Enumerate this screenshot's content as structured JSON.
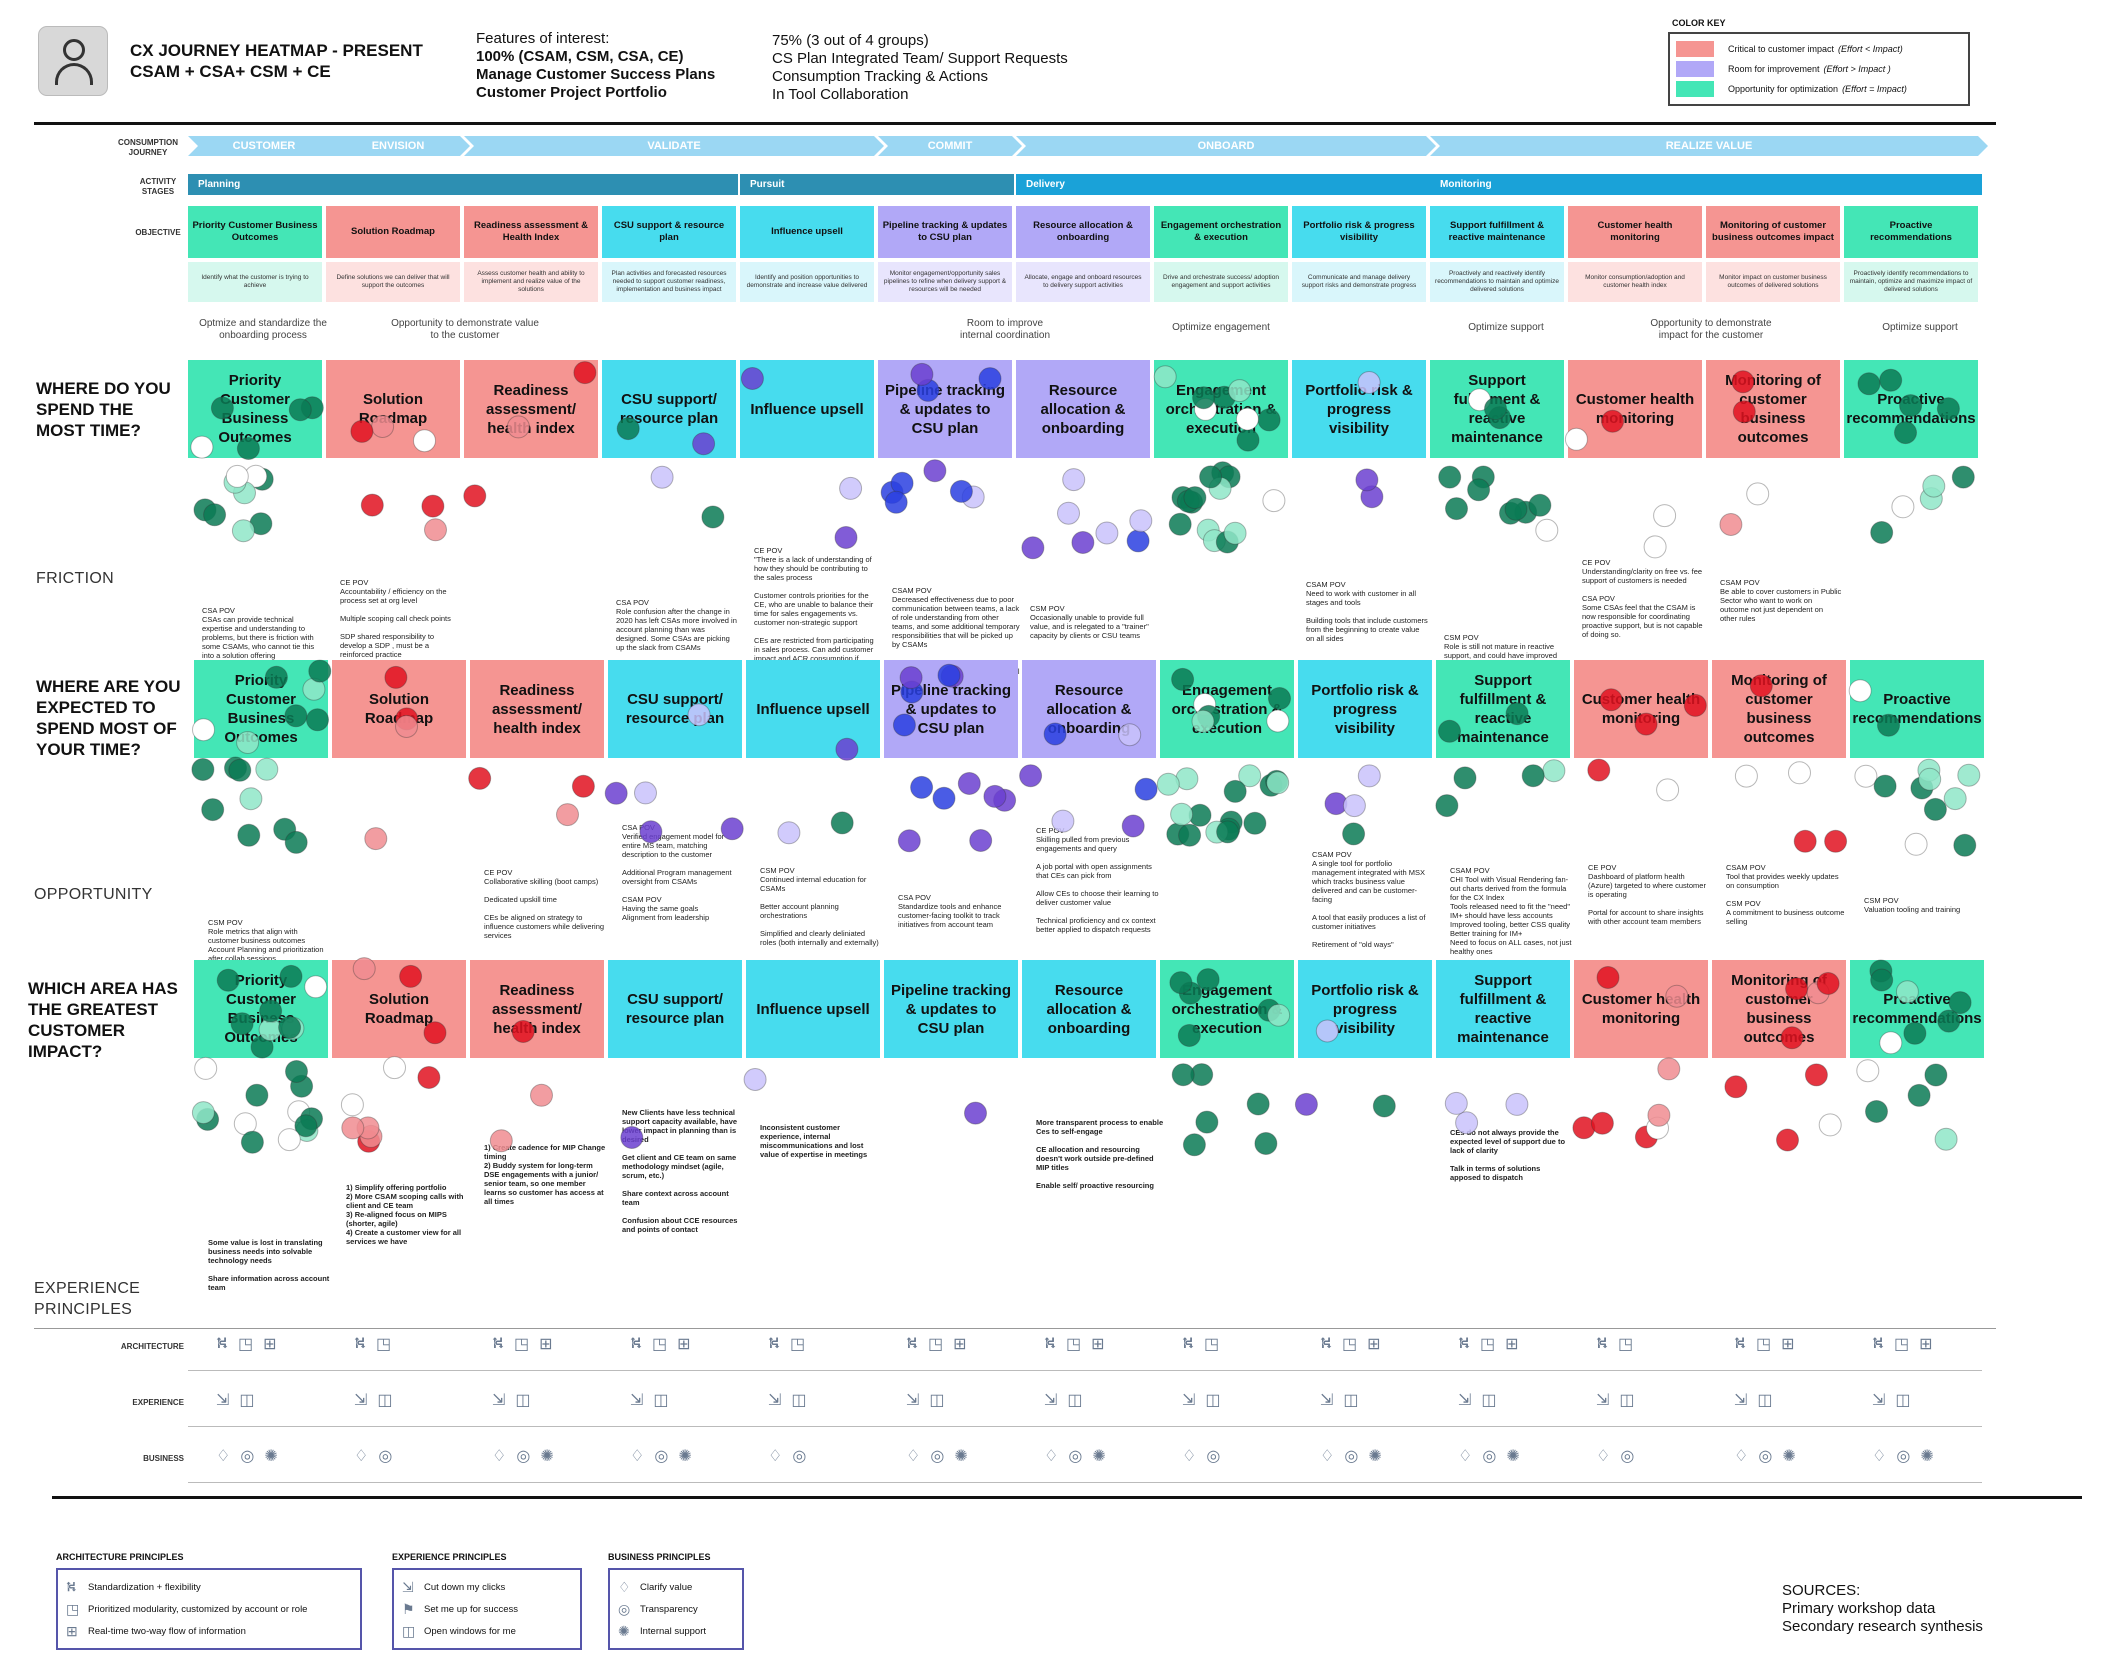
{
  "header": {
    "title_line1": "CX JOURNEY HEATMAP - PRESENT",
    "title_line2": "CSAM + CSA+ CSM + CE",
    "features_label": "Features of interest:",
    "feat_left": [
      "100% (CSAM, CSM, CSA, CE)",
      "Manage Customer Success Plans",
      "Customer Project Portfolio"
    ],
    "feat_right": [
      "75%  (3 out of 4 groups)",
      "CS Plan Integrated Team/ Support Requests",
      "Consumption Tracking & Actions",
      "In Tool Collaboration"
    ]
  },
  "color_key": {
    "title": "COLOR KEY",
    "items": [
      {
        "label": "Critical to customer impact",
        "note": "(Effort < Impact)",
        "color": "#f59592"
      },
      {
        "label": "Room for improvement",
        "note": "(Effort > Impact )",
        "color": "#b1a8f7"
      },
      {
        "label": "Opportunity for optimization",
        "note": "(Effort = Impact)",
        "color": "#44e6b6"
      }
    ]
  },
  "row_labels": {
    "journey": "CONSUMPTION\nJOURNEY",
    "activity": "ACTIVITY\nSTAGES",
    "objective": "OBJECTIVE"
  },
  "journey": [
    "CUSTOMER",
    "ENVISION",
    "VALIDATE",
    "COMMIT",
    "ONBOARD",
    "REALIZE VALUE"
  ],
  "stages": [
    "Planning",
    "Pursuit",
    "Delivery",
    "Monitoring"
  ],
  "objectives": [
    {
      "title": "Priority Customer Business Outcomes",
      "desc": "Identify what the customer is trying to achieve",
      "cat": "green"
    },
    {
      "title": "Solution Roadmap",
      "desc": "Define solutions we can deliver that will support the outcomes",
      "cat": "red"
    },
    {
      "title": "Readiness assessment & Health Index",
      "desc": "Assess customer health and ability to implement and realize value of the solutions",
      "cat": "red"
    },
    {
      "title": "CSU support & resource plan",
      "desc": "Plan activities and forecasted resources needed to support customer readiness, implementation and business impact",
      "cat": "cyan"
    },
    {
      "title": "Influence upsell",
      "desc": "Identify and position opportunities to demonstrate and increase value delivered",
      "cat": "cyan"
    },
    {
      "title": "Pipeline tracking & updates to CSU plan",
      "desc": "Monitor engagement/opportunity sales pipelines to refine when delivery support & resources will be needed",
      "cat": "purple"
    },
    {
      "title": "Resource allocation & onboarding",
      "desc": "Allocate, engage and onboard resources to delivery support activities",
      "cat": "purple"
    },
    {
      "title": "Engagement orchestration & execution",
      "desc": "Drive and orchestrate success/ adoption engagement and support activities",
      "cat": "green"
    },
    {
      "title": "Portfolio risk & progress visibility",
      "desc": "Communicate and manage delivery support risks and demonstrate progress",
      "cat": "cyan"
    },
    {
      "title": "Support fulfillment & reactive maintenance",
      "desc": "Proactively and reactively identify recommendations to maintain and optimize delivered solutions",
      "cat": "cyan"
    },
    {
      "title": "Customer health monitoring",
      "desc": "Monitor consumption/adoption and customer health index",
      "cat": "red"
    },
    {
      "title": "Monitoring of customer business outcomes impact",
      "desc": "Monitor impact on customer business outcomes of delivered solutions",
      "cat": "red"
    },
    {
      "title": "Proactive recommendations",
      "desc": "Proactively identify recommendations to maintain, optimize and maximize impact of delivered solutions",
      "cat": "green"
    }
  ],
  "opportunities": [
    "Optmize and standardize the onboarding process",
    "Opportunity to demonstrate value to the customer",
    "Room to improve internal coordination",
    "Optimize engagement",
    "Optimize support",
    "Opportunity to demonstrate impact for the customer",
    "Optimize support"
  ],
  "sections": [
    {
      "question": "WHERE DO YOU SPEND THE MOST TIME?",
      "label": "FRICTION",
      "cards": [
        {
          "title": "Priority Customer Business Outcomes",
          "cat": "green"
        },
        {
          "title": "Solution Roadmap",
          "cat": "red"
        },
        {
          "title": "Readiness assessment/ health index",
          "cat": "red"
        },
        {
          "title": "CSU support/ resource plan",
          "cat": "cyan"
        },
        {
          "title": "Influence upsell",
          "cat": "cyan"
        },
        {
          "title": "Pipeline tracking & updates to CSU plan",
          "cat": "purple"
        },
        {
          "title": "Resource allocation & onboarding",
          "cat": "purple"
        },
        {
          "title": "Engagement orchestration & execution",
          "cat": "green"
        },
        {
          "title": "Portfolio risk & progress visibility",
          "cat": "cyan"
        },
        {
          "title": "Support fulfillment & reactive maintenance",
          "cat": "green"
        },
        {
          "title": "Customer health monitoring",
          "cat": "red"
        },
        {
          "title": "Monitoring of customer business outcomes",
          "cat": "red"
        },
        {
          "title": "Proactive recommendations",
          "cat": "green"
        }
      ],
      "notes": [
        {
          "col": 0,
          "dy": 98,
          "text": "CSA POV\nCSAs can provide technical expertise and understanding to problems, but there is friction with some CSAMs, who cannot tie this into a solution offering"
        },
        {
          "col": 1,
          "dy": 70,
          "text": "CE POV\nAccountability / efficiency on the process set at org level\n\nMultiple scoping call check points\n\nSDP shared responsibility to develop a SDP , must be a reinforced practice\n\nEnsure SSP STU understand CE skills and support services"
        },
        {
          "col": 3,
          "dy": 90,
          "text": "CSA POV\nRole confusion after the change in 2020 has left CSAs more involved in account planning than was designed. Some CSAs are picking up the slack from CSAMs"
        },
        {
          "col": 4,
          "dy": 38,
          "text": "CE POV\n\"There is a lack of understanding of how they should be contributing to the sales process\n\nCustomer controls priorities for the CE, who are unable to balance their time for sales engagements vs. customer non-strategic support\n\nCEs are restricted from participating in sales process. Can add customer impact and ACR consumption if more significantly involved\""
        },
        {
          "col": 5,
          "dy": 78,
          "text": "CSAM POV\nDecreased effectiveness due to poor communication between teams, a lack of role understanding from other teams, and some additional temporary responsibilities that will be picked up by CSAMs\n\nCSA POV\nOwnership KPIs in MSX are not useful"
        },
        {
          "col": 6,
          "dy": 96,
          "text": "CSM POV\nOccasionally unable to provide full value, and is relegated to a \"trainer\" capacity by clients or CSU teams"
        },
        {
          "col": 8,
          "dy": 72,
          "text": "CSAM POV\nNeed to work with customer in all stages and tools\n\nBuilding tools that include customers from the beginning to create value on all sides"
        },
        {
          "col": 9,
          "dy": 125,
          "text": "CSM POV\nRole is still not mature in reactive support, and could have improved technical depth to remove blockers"
        },
        {
          "col": 10,
          "dy": 50,
          "text": "CE POV\nUnderstanding/clarity on free vs. fee support of customers is needed\n\nCSA POV\nSome CSAs feel that the CSAM is now responsible for coordinating proactive support, but is not capable of doing so."
        },
        {
          "col": 11,
          "dy": 70,
          "text": "CSAM POV\nBe able to cover customers in Public Sector who want to work on outcome not just dependent on other rules"
        }
      ]
    },
    {
      "question": "WHERE ARE YOU EXPECTED TO SPEND MOST OF YOUR TIME?",
      "label": "OPPORTUNITY",
      "cards": [
        {
          "title": "Priority Customer Business Outcomes",
          "cat": "green"
        },
        {
          "title": "Solution Roadmap",
          "cat": "red"
        },
        {
          "title": "Readiness assessment/ health index",
          "cat": "red"
        },
        {
          "title": "CSU support/ resource plan",
          "cat": "cyan"
        },
        {
          "title": "Influence upsell",
          "cat": "cyan"
        },
        {
          "title": "Pipeline tracking & updates to CSU plan",
          "cat": "purple"
        },
        {
          "title": "Resource allocation & onboarding",
          "cat": "purple"
        },
        {
          "title": "Engagement orchestration & execution",
          "cat": "green"
        },
        {
          "title": "Portfolio risk & progress visibility",
          "cat": "cyan"
        },
        {
          "title": "Support fulfillment & reactive maintenance",
          "cat": "green"
        },
        {
          "title": "Customer health monitoring",
          "cat": "red"
        },
        {
          "title": "Monitoring of customer business outcomes",
          "cat": "red"
        },
        {
          "title": "Proactive recommendations",
          "cat": "green"
        }
      ],
      "notes": [
        {
          "col": 0,
          "dy": 110,
          "text": "CSM POV\nRole metrics that align with customer business outcomes\nAccount Planning and prioritization after collab sessions\nMore information from customers about their desired business outcomes.\nIndustry benchmarks, real ROI calculators, and references\nBetter processes to follow customer business objectives through a documented process"
        },
        {
          "col": 2,
          "dy": 60,
          "text": "CE POV\nCollaborative skilling (boot camps)\n\nDedicated upskill time\n\nCEs be aligned on strategy to influence customers while delivering services"
        },
        {
          "col": 3,
          "dy": 15,
          "text": "CSA POV\nVerified engagement model for entire MS team, matching description to the customer\n\nAdditional Program management oversight from CSAMs\n\nCSAM POV\nHaving the same goals\nAlignment from leadership"
        },
        {
          "col": 4,
          "dy": 58,
          "text": "CSM POV\nContinued internal education for CSAMs\n\nBetter account planning orchestrations\n\nSimplified and clearly deliniated roles (both internally and externally)"
        },
        {
          "col": 5,
          "dy": 85,
          "text": "CSA POV\nStandardize tools and enhance customer-facing toolkit to track initiatives from account team"
        },
        {
          "col": 6,
          "dy": 18,
          "text": "CE POV\nSkilling pulled from previous engagements and query\n\nA job portal with open assignments that CEs can pick from\n\nAllow CEs to choose their learning to deliver customer value\n\nTechnical proficiency and cx context better applied to dispatch requests"
        },
        {
          "col": 8,
          "dy": 42,
          "text": "CSAM POV\nA single tool for portfolio management integrated with MSX which tracks business value delivered and can be customer-facing\n\nA tool that easily produces a list of customer initiatives\n\nRetirement of \"old ways\""
        },
        {
          "col": 9,
          "dy": 58,
          "text": "CSAM POV\nCHI Tool with Visual Rendering fan-out charts derived from the formula for the CX Index\nTools released need to fit the \"need\"\nIM+ should have less accounts\nImproved tooling, better CSS quality\nBetter training for IM+\nNeed to focus on ALL cases, not just healthy ones"
        },
        {
          "col": 10,
          "dy": 55,
          "text": "CE POV\nDashboard of platform health (Azure) targeted to where customer is operating\n\nPortal for account to share insights with other account team members"
        },
        {
          "col": 11,
          "dy": 55,
          "text": "CSAM POV\nTool that provides weekly updates on consumption\n\nCSM POV\nA commitment to business outcome selling"
        },
        {
          "col": 12,
          "dy": 88,
          "text": "CSM POV\nValuation tooling and training"
        }
      ]
    },
    {
      "question": "WHICH AREA HAS THE GREATEST CUSTOMER IMPACT?",
      "label": "",
      "cards": [
        {
          "title": "Priority Customer Business Outcomes",
          "cat": "green"
        },
        {
          "title": "Solution Roadmap",
          "cat": "red"
        },
        {
          "title": "Readiness assessment/ health index",
          "cat": "red"
        },
        {
          "title": "CSU support/ resource plan",
          "cat": "cyan"
        },
        {
          "title": "Influence upsell",
          "cat": "cyan"
        },
        {
          "title": "Pipeline tracking & updates to CSU plan",
          "cat": "cyan"
        },
        {
          "title": "Resource allocation & onboarding",
          "cat": "cyan"
        },
        {
          "title": "Engagement orchestration & execution",
          "cat": "green"
        },
        {
          "title": "Portfolio risk & progress visibility",
          "cat": "cyan"
        },
        {
          "title": "Support fulfillment & reactive maintenance",
          "cat": "cyan"
        },
        {
          "title": "Customer health monitoring",
          "cat": "red"
        },
        {
          "title": "Monitoring of customer business outcomes",
          "cat": "red"
        },
        {
          "title": "Proactive recommendations",
          "cat": "green"
        }
      ],
      "notes": [
        {
          "col": 0,
          "dy": 130,
          "bold": true,
          "text": "Some value is lost in translating business needs into solvable technology needs\n\nShare information across account team"
        },
        {
          "col": 1,
          "dy": 75,
          "bold": true,
          "text": "1) Simplify offering portfolio\n2) More CSAM scoping calls with client and CE team\n3) Re-aligned focus on MIPS (shorter, agile)\n4) Create a customer view for all services we have"
        },
        {
          "col": 2,
          "dy": 35,
          "bold": true,
          "text": "1) Create cadence for MIP Change timing\n2) Buddy system for long-term DSE engagements with a junior/ senior team, so one member learns so customer has access at all times"
        },
        {
          "col": 3,
          "dy": 0,
          "bold": true,
          "text": "New Clients have less technical support capacity available, have lower impact in planning than is desired\n\nGet client and CE team on same methodology mindset (agile, scrum, etc.)\n\nShare context across account team\n\nConfusion about CCE resources and points of contact"
        },
        {
          "col": 4,
          "dy": 15,
          "bold": true,
          "text": "Inconsistent customer experience, internal miscommunications and lost value of expertise in meetings"
        },
        {
          "col": 6,
          "dy": 10,
          "bold": true,
          "text": "More transparent process to enable Ces to self-engage\n\nCE allocation and resourcing doesn't work outside pre-defined MIP titles\n\nEnable self/ proactive resourcing"
        },
        {
          "col": 9,
          "dy": 20,
          "bold": true,
          "text": "CEs do not always provide the expected level of support due to lack of clarity\n\nTalk in terms of solutions apposed to dispatch"
        }
      ]
    }
  ],
  "experience_principles_label": "EXPERIENCE\nPRINCIPLES",
  "principle_rows": [
    {
      "label": "ARCHITECTURE",
      "icons": [
        "standardization-icon",
        "modularity-icon",
        "flow-icon"
      ]
    },
    {
      "label": "EXPERIENCE",
      "icons": [
        "clicks-icon",
        "windows-icon"
      ]
    },
    {
      "label": "BUSINESS",
      "icons": [
        "value-icon",
        "transparency-icon",
        "support-icon"
      ]
    }
  ],
  "principle_glyphs": {
    "ARCHITECTURE": [
      "⛕",
      "◳",
      "⊞"
    ],
    "EXPERIENCE": [
      "⇲",
      "◫"
    ],
    "BUSINESS": [
      "♢",
      "◎",
      "✺"
    ]
  },
  "legend": [
    {
      "title": "ARCHITECTURE PRINCIPLES",
      "items": [
        {
          "icon": "⛕",
          "name": "standardization-icon",
          "label": "Standardization + flexibility"
        },
        {
          "icon": "◳",
          "name": "modularity-icon",
          "label": "Prioritized modularity, customized by account or role"
        },
        {
          "icon": "⊞",
          "name": "flow-icon",
          "label": "Real-time two-way flow of information"
        }
      ]
    },
    {
      "title": "EXPERIENCE PRINCIPLES",
      "items": [
        {
          "icon": "⇲",
          "name": "clicks-icon",
          "label": "Cut down my clicks"
        },
        {
          "icon": "⚑",
          "name": "success-icon",
          "label": "Set me up for success"
        },
        {
          "icon": "◫",
          "name": "windows-icon",
          "label": "Open windows for me"
        }
      ]
    },
    {
      "title": "BUSINESS PRINCIPLES",
      "items": [
        {
          "icon": "♢",
          "name": "value-icon",
          "label": "Clarify value"
        },
        {
          "icon": "◎",
          "name": "transparency-icon",
          "label": "Transparency"
        },
        {
          "icon": "✺",
          "name": "support-icon",
          "label": "Internal support"
        }
      ]
    }
  ],
  "sources": {
    "title": "SOURCES:",
    "lines": [
      "Primary workshop data",
      "Secondary research synthesis"
    ]
  },
  "colors": {
    "green": "#44e6b6",
    "red": "#f59592",
    "purple": "#b1a8f7",
    "cyan": "#47dcee",
    "chevron": "#9bd7f3",
    "stage_planning": "#2d8fb2",
    "stage_pursuit": "#2d8fb2",
    "stage_delivery": "#1aa2d8",
    "stage_monitoring": "#1aa2d8",
    "dot_green": "#0b7a55",
    "dot_red": "#e01220",
    "dot_purple": "#6b3fd0",
    "dot_blue": "#2a3fe0"
  }
}
